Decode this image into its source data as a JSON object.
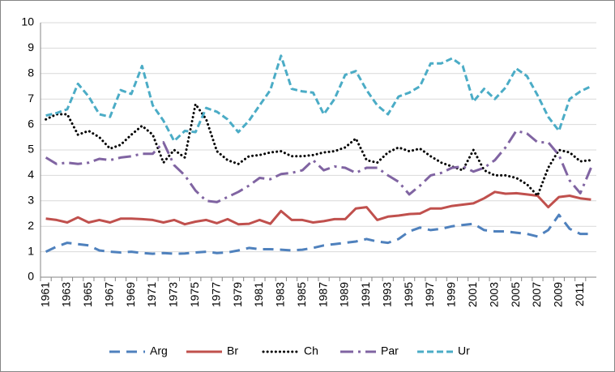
{
  "chart_data": {
    "type": "line",
    "categories": [
      "1961",
      null,
      "1963",
      null,
      "1965",
      null,
      "1967",
      null,
      "1969",
      null,
      "1971",
      null,
      "1973",
      null,
      "1975",
      null,
      "1977",
      null,
      "1979",
      null,
      "1981",
      null,
      "1983",
      null,
      "1985",
      null,
      "1987",
      null,
      "1989",
      null,
      "1991",
      null,
      "1993",
      null,
      "1995",
      null,
      "1997",
      null,
      "1999",
      null,
      "2001",
      null,
      "2003",
      null,
      "2005",
      null,
      "2007",
      null,
      "2009",
      null,
      "2011",
      null
    ],
    "series": [
      {
        "name": "Arg",
        "color": "#4f81bd",
        "values": [
          1.0,
          1.2,
          1.35,
          1.3,
          1.25,
          1.05,
          1.0,
          0.97,
          1.0,
          0.95,
          0.92,
          0.95,
          0.92,
          0.93,
          0.97,
          1.0,
          0.95,
          0.97,
          1.05,
          1.15,
          1.1,
          1.1,
          1.08,
          1.05,
          1.08,
          1.15,
          1.25,
          1.3,
          1.35,
          1.4,
          1.5,
          1.4,
          1.35,
          1.5,
          1.8,
          1.95,
          1.85,
          1.9,
          2.0,
          2.05,
          2.1,
          1.85,
          1.8,
          1.8,
          1.75,
          1.7,
          1.6,
          1.85,
          2.45,
          1.9,
          1.7,
          1.7
        ]
      },
      {
        "name": "Br",
        "color": "#c0504d",
        "values": [
          2.3,
          2.25,
          2.15,
          2.35,
          2.15,
          2.25,
          2.15,
          2.3,
          2.3,
          2.28,
          2.25,
          2.15,
          2.25,
          2.08,
          2.18,
          2.25,
          2.12,
          2.28,
          2.08,
          2.1,
          2.25,
          2.1,
          2.6,
          2.25,
          2.25,
          2.15,
          2.2,
          2.28,
          2.28,
          2.7,
          2.75,
          2.25,
          2.38,
          2.42,
          2.48,
          2.5,
          2.7,
          2.7,
          2.8,
          2.85,
          2.9,
          3.1,
          3.35,
          3.28,
          3.3,
          3.25,
          3.2,
          2.75,
          3.15,
          3.2,
          3.1,
          3.05
        ]
      },
      {
        "name": "Ch",
        "color": "#000000",
        "values": [
          6.2,
          6.4,
          6.4,
          5.6,
          5.75,
          5.5,
          5.05,
          5.2,
          5.6,
          5.95,
          5.6,
          4.5,
          5.0,
          4.7,
          6.8,
          6.2,
          4.95,
          4.6,
          4.45,
          4.75,
          4.8,
          4.9,
          4.95,
          4.75,
          4.75,
          4.8,
          4.9,
          4.95,
          5.1,
          5.45,
          4.6,
          4.5,
          4.9,
          5.1,
          4.95,
          5.05,
          4.75,
          4.5,
          4.35,
          4.2,
          5.0,
          4.2,
          4.0,
          4.0,
          3.9,
          3.65,
          3.2,
          4.3,
          5.0,
          4.9,
          4.55,
          4.6
        ]
      },
      {
        "name": "Par",
        "color": "#8064a2",
        "values": [
          4.7,
          4.45,
          4.5,
          4.45,
          4.5,
          4.65,
          4.6,
          4.7,
          4.75,
          4.85,
          4.85,
          5.3,
          4.4,
          4.0,
          3.4,
          3.0,
          2.95,
          3.15,
          3.35,
          3.6,
          3.9,
          3.85,
          4.05,
          4.1,
          4.2,
          4.6,
          4.2,
          4.35,
          4.3,
          4.1,
          4.3,
          4.3,
          4.0,
          3.75,
          3.25,
          3.6,
          4.0,
          4.1,
          4.3,
          4.35,
          4.15,
          4.3,
          4.6,
          5.1,
          5.75,
          5.65,
          5.3,
          5.3,
          4.8,
          3.8,
          3.3,
          4.3
        ]
      },
      {
        "name": "Ur",
        "color": "#4bacc6",
        "values": [
          6.35,
          6.45,
          6.6,
          7.6,
          7.1,
          6.4,
          6.3,
          7.35,
          7.2,
          8.3,
          6.75,
          6.15,
          5.35,
          5.75,
          5.7,
          6.65,
          6.5,
          6.2,
          5.7,
          6.15,
          6.75,
          7.35,
          8.7,
          7.4,
          7.3,
          7.25,
          6.4,
          7.0,
          7.95,
          8.1,
          7.35,
          6.75,
          6.4,
          7.1,
          7.25,
          7.5,
          8.4,
          8.4,
          8.6,
          8.3,
          6.9,
          7.4,
          7.0,
          7.45,
          8.2,
          7.9,
          7.15,
          6.3,
          5.75,
          7.0,
          7.3,
          7.5
        ]
      }
    ],
    "ylim": [
      0,
      10
    ],
    "yticks": [
      0,
      1,
      2,
      3,
      4,
      5,
      6,
      7,
      8,
      9,
      10
    ],
    "grid": true,
    "legend": "bottom"
  }
}
